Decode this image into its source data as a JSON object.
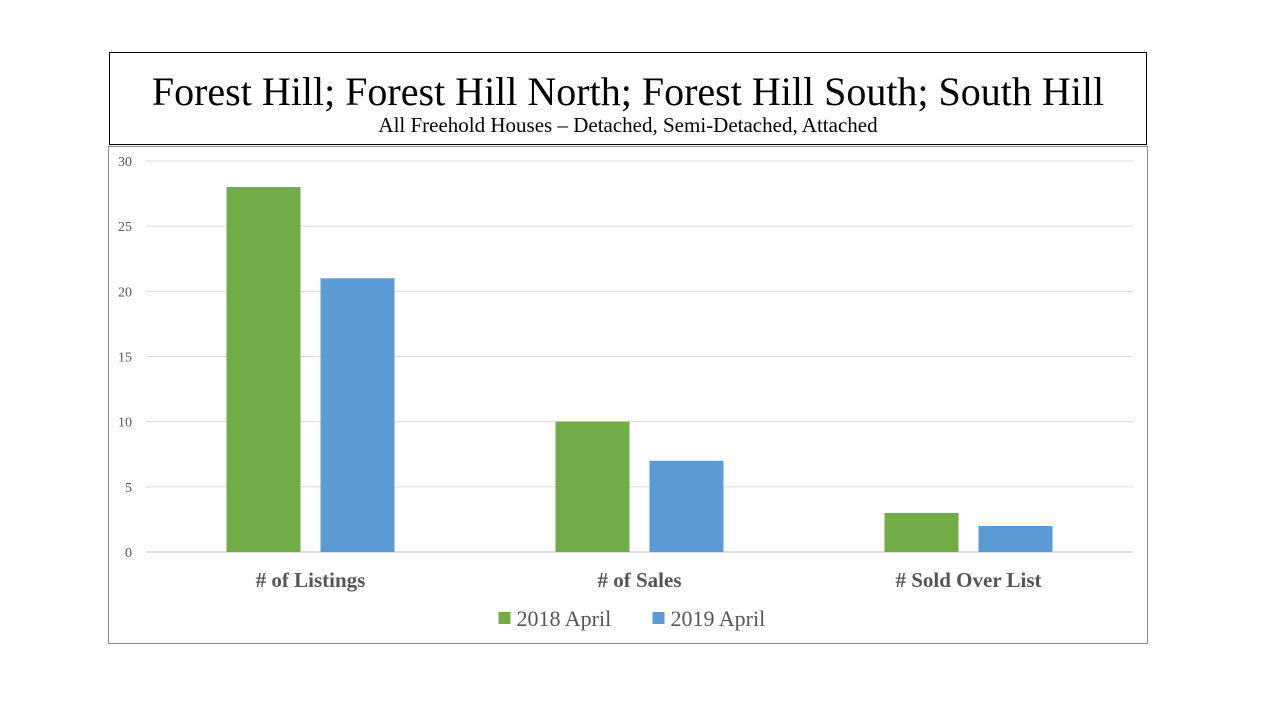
{
  "chart_data": {
    "type": "bar",
    "title": "Forest Hill; Forest Hill North; Forest Hill South; South Hill",
    "subtitle": "All Freehold Houses – Detached, Semi-Detached, Attached",
    "categories": [
      "# of Listings",
      "# of Sales",
      "# Sold Over List"
    ],
    "series": [
      {
        "name": "2018 April",
        "values": [
          28,
          10,
          3
        ],
        "color": "#70ad47"
      },
      {
        "name": "2019 April",
        "values": [
          21,
          7,
          2
        ],
        "color": "#5b9bd5"
      }
    ],
    "ylim": [
      0,
      30
    ],
    "yticks": [
      "0",
      "5",
      "10",
      "15",
      "20",
      "25",
      "30"
    ],
    "grid": true,
    "legend": "bottom"
  }
}
